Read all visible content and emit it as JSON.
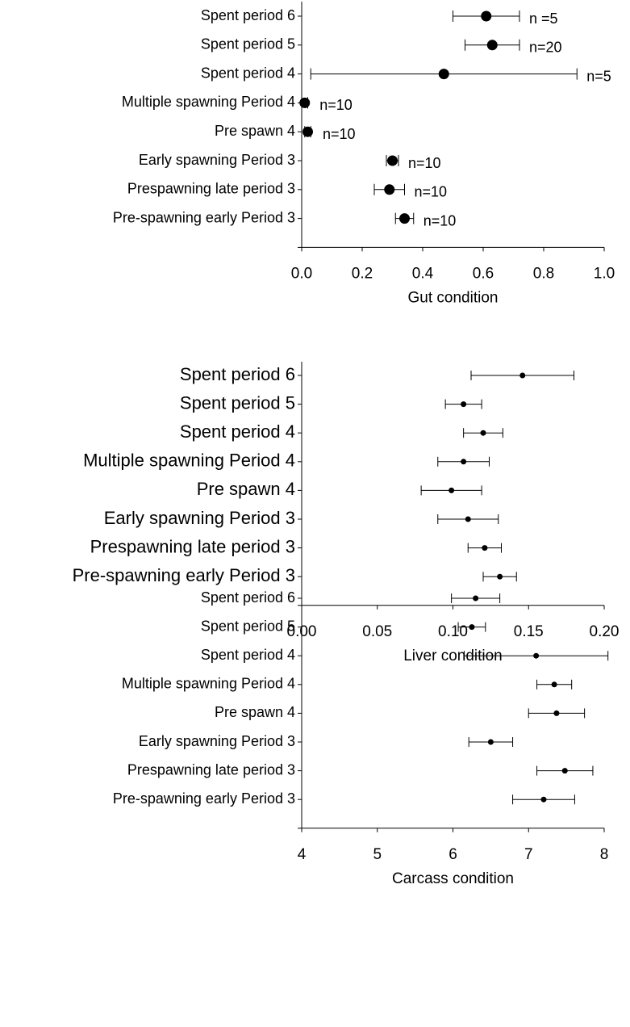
{
  "chart_data": [
    {
      "type": "dot-errorbar",
      "xlabel": "Gut condition",
      "categories": [
        "Spent period 6",
        "Spent period 5",
        "Spent period 4",
        "Multiple spawning Period 4",
        "Pre spawn 4",
        "Early spawning Period 3",
        "Prespawning late period 3",
        "Pre-spawning early Period 3"
      ],
      "values": [
        0.61,
        0.63,
        0.47,
        0.01,
        0.02,
        0.3,
        0.29,
        0.34
      ],
      "errors": [
        0.11,
        0.09,
        0.44,
        0.01,
        0.01,
        0.02,
        0.05,
        0.03
      ],
      "point_labels": [
        "n =5",
        "n=20",
        "n=5",
        "n=10",
        "n=10",
        "n=10",
        "n=10",
        "n=10"
      ],
      "color": "#000000",
      "xlim": [
        0,
        1
      ],
      "xticks": [
        {
          "value": 0,
          "label": "0.0"
        },
        0.2,
        0.4,
        0.6,
        0.8,
        {
          "value": 1,
          "label": "1.0"
        }
      ]
    },
    {
      "type": "dot-errorbar",
      "xlabel": "Liver condition",
      "categories": [
        "Spent period 6",
        "Spent period 5",
        "Spent period 4",
        "Multiple spawning Period 4",
        "Pre spawn 4",
        "Early spawning Period 3",
        "Prespawning late period 3",
        "Pre-spawning early Period 3"
      ],
      "values": [
        0.146,
        0.107,
        0.12,
        0.107,
        0.099,
        0.11,
        0.121,
        0.131
      ],
      "errors": [
        0.034,
        0.012,
        0.013,
        0.017,
        0.02,
        0.02,
        0.011,
        0.011
      ],
      "color": "#000000",
      "xlim": [
        0,
        0.2
      ],
      "xticks": [
        {
          "value": 0,
          "label": "0.00"
        },
        {
          "value": 0.05,
          "label": "0.05"
        },
        {
          "value": 0.1,
          "label": "0.10"
        },
        {
          "value": 0.15,
          "label": "0.15"
        },
        {
          "value": 0.2,
          "label": "0.20"
        }
      ]
    },
    {
      "type": "dot-errorbar",
      "xlabel": "Carcass condition",
      "categories": [
        "Spent period 6",
        "Spent period 5",
        "Spent period 4",
        "Multiple spawning Period 4",
        "Pre spawn 4",
        "Early spawning Period 3",
        "Prespawning late period 3",
        "Pre-spawning early Period 3"
      ],
      "values": [
        6.3,
        6.25,
        7.1,
        7.34,
        7.37,
        6.5,
        7.48,
        7.2
      ],
      "errors": [
        0.32,
        0.18,
        0.95,
        0.23,
        0.37,
        0.29,
        0.37,
        0.41
      ],
      "color": "#000000",
      "xlim": [
        4,
        8
      ],
      "xticks": [
        4,
        5,
        6,
        7,
        8
      ]
    }
  ]
}
